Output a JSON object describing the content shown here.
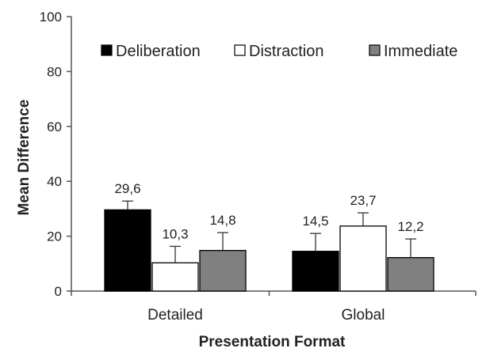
{
  "chart_data": {
    "type": "bar",
    "title": "",
    "xlabel": "Presentation Format",
    "ylabel": "Mean Difference",
    "ylim": [
      0,
      100
    ],
    "yticks": [
      0,
      20,
      40,
      60,
      80,
      100
    ],
    "grid": false,
    "legend_position": "top-right",
    "categories": [
      "Detailed",
      "Global"
    ],
    "series": [
      {
        "name": "Deliberation",
        "color": "#000000",
        "values": [
          29.6,
          14.5
        ],
        "labels": [
          "29,6",
          "14,5"
        ],
        "error": [
          3.2,
          6.5
        ]
      },
      {
        "name": "Distraction",
        "color": "#ffffff",
        "values": [
          10.3,
          23.7
        ],
        "labels": [
          "10,3",
          "23,7"
        ],
        "error": [
          6.0,
          4.8
        ]
      },
      {
        "name": "Immediate",
        "color": "#808080",
        "values": [
          14.8,
          12.2
        ],
        "labels": [
          "14,8",
          "12,2"
        ],
        "error": [
          6.5,
          6.8
        ]
      }
    ]
  }
}
